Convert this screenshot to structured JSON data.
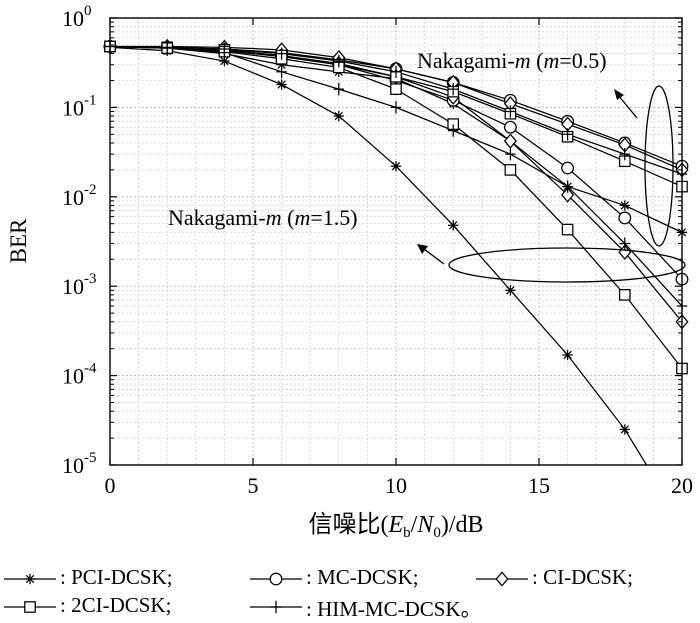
{
  "chart_data": {
    "type": "line",
    "xlabel": "信噪比(E_b/N_0)/dB",
    "ylabel": "BER",
    "x_ticks": [
      "0",
      "5",
      "10",
      "15",
      "20"
    ],
    "y_ticks": [
      "10^0",
      "10^-1",
      "10^-2",
      "10^-3",
      "10^-4",
      "10^-5"
    ],
    "xlim": [
      0,
      20
    ],
    "ylim": [
      1e-05,
      1
    ],
    "y_scale": "log",
    "grid": true,
    "annotations": [
      {
        "text": "Nakagami-m (m=0.5)",
        "x": 11,
        "y": 0.45
      },
      {
        "text": "Nakagami-m (m=1.5)",
        "x": 2,
        "y": 0.0033
      }
    ],
    "series": [
      {
        "name": "PCI-DCSK",
        "group": "m=0.5",
        "marker": "star",
        "x": [
          0,
          2,
          4,
          6,
          8,
          10,
          12,
          14,
          16,
          18,
          20
        ],
        "y": [
          0.48,
          0.46,
          0.4,
          0.3,
          0.25,
          0.21,
          0.11,
          0.042,
          0.013,
          0.008,
          0.004
        ]
      },
      {
        "name": "PCI-DCSK",
        "group": "m=1.5",
        "marker": "star",
        "x": [
          0,
          2,
          4,
          6,
          8,
          10,
          12,
          14,
          16,
          18,
          19
        ],
        "y": [
          0.47,
          0.43,
          0.33,
          0.18,
          0.08,
          0.022,
          0.0048,
          0.0009,
          0.00017,
          2.5e-05,
          7.5e-06
        ]
      },
      {
        "name": "MC-DCSK",
        "group": "m=0.5",
        "marker": "circle",
        "x": [
          0,
          2,
          4,
          6,
          8,
          10,
          12,
          14,
          16,
          18,
          20
        ],
        "y": [
          0.48,
          0.47,
          0.45,
          0.41,
          0.34,
          0.27,
          0.19,
          0.12,
          0.07,
          0.04,
          0.022
        ]
      },
      {
        "name": "MC-DCSK",
        "group": "m=1.5",
        "marker": "circle",
        "x": [
          0,
          2,
          4,
          6,
          8,
          10,
          12,
          14,
          16,
          18,
          20
        ],
        "y": [
          0.48,
          0.46,
          0.43,
          0.37,
          0.3,
          0.2,
          0.12,
          0.06,
          0.021,
          0.0058,
          0.0012
        ]
      },
      {
        "name": "CI-DCSK",
        "group": "m=0.5",
        "marker": "diamond",
        "x": [
          0,
          2,
          4,
          6,
          8,
          10,
          12,
          14,
          16,
          18,
          20
        ],
        "y": [
          0.48,
          0.48,
          0.47,
          0.44,
          0.36,
          0.27,
          0.19,
          0.11,
          0.065,
          0.038,
          0.02
        ]
      },
      {
        "name": "CI-DCSK",
        "group": "m=1.5",
        "marker": "diamond",
        "x": [
          0,
          2,
          4,
          6,
          8,
          10,
          12,
          14,
          16,
          18,
          20
        ],
        "y": [
          0.48,
          0.47,
          0.44,
          0.38,
          0.31,
          0.22,
          0.13,
          0.042,
          0.0105,
          0.0024,
          0.0004
        ]
      },
      {
        "name": "2CI-DCSK",
        "group": "m=0.5",
        "marker": "square",
        "x": [
          0,
          2,
          4,
          6,
          8,
          10,
          12,
          14,
          16,
          18,
          20
        ],
        "y": [
          0.48,
          0.47,
          0.44,
          0.38,
          0.3,
          0.22,
          0.15,
          0.085,
          0.047,
          0.025,
          0.013
        ]
      },
      {
        "name": "2CI-DCSK",
        "group": "m=1.5",
        "marker": "square",
        "x": [
          0,
          2,
          4,
          6,
          8,
          10,
          12,
          14,
          16,
          18,
          20
        ],
        "y": [
          0.48,
          0.46,
          0.42,
          0.35,
          0.28,
          0.16,
          0.065,
          0.02,
          0.0043,
          0.0008,
          0.00012
        ]
      },
      {
        "name": "HIM-MC-DCSK",
        "group": "m=0.5",
        "marker": "plus",
        "x": [
          0,
          2,
          4,
          6,
          8,
          10,
          12,
          14,
          16,
          18,
          20
        ],
        "y": [
          0.48,
          0.47,
          0.45,
          0.4,
          0.33,
          0.25,
          0.16,
          0.09,
          0.05,
          0.03,
          0.018
        ]
      },
      {
        "name": "HIM-MC-DCSK",
        "group": "m=1.5",
        "marker": "plus",
        "x": [
          0,
          2,
          4,
          6,
          8,
          10,
          12,
          14,
          16,
          18,
          20
        ],
        "y": [
          0.48,
          0.46,
          0.41,
          0.25,
          0.16,
          0.1,
          0.055,
          0.03,
          0.013,
          0.003,
          0.0006
        ]
      }
    ]
  },
  "legend": [
    {
      "marker": "star",
      "label": ": PCI-DCSK;"
    },
    {
      "marker": "circle",
      "label": ": MC-DCSK;"
    },
    {
      "marker": "diamond",
      "label": ": CI-DCSK;"
    },
    {
      "marker": "square",
      "label": ": 2CI-DCSK;"
    },
    {
      "marker": "plus",
      "label": ": HIM-MC-DCSK。"
    }
  ]
}
